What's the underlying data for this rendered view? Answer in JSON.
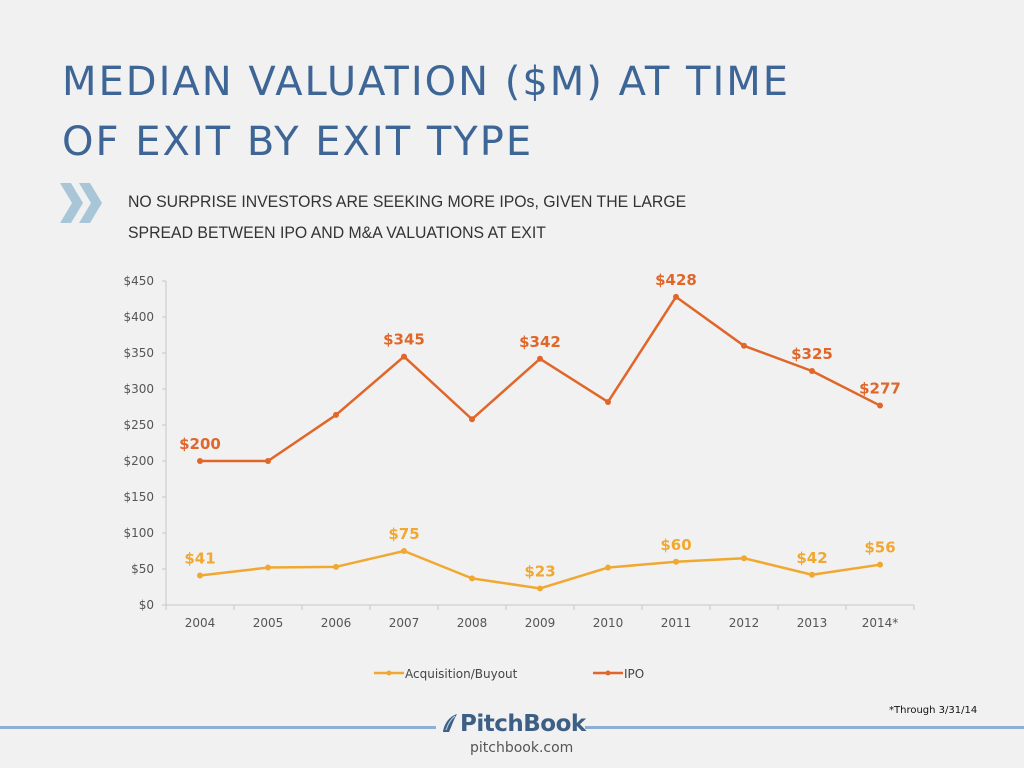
{
  "header": {
    "title_line1": "MEDIAN VALUATION ($M) AT TIME",
    "title_line2": "OF EXIT BY EXIT TYPE",
    "subtitle_line1": "NO SURPRISE INVESTORS ARE SEEKING MORE IPOs, GIVEN THE LARGE",
    "subtitle_line2": "SPREAD BETWEEN IPO AND M&A VALUATIONS AT EXIT",
    "bullet_icon": "double-chevron-right-icon"
  },
  "chart_data": {
    "type": "line",
    "title": "Median Valuation ($M) at Time of Exit by Exit Type",
    "xlabel": "",
    "ylabel": "",
    "categories": [
      "2004",
      "2005",
      "2006",
      "2007",
      "2008",
      "2009",
      "2010",
      "2011",
      "2012",
      "2013",
      "2014*"
    ],
    "ylim": [
      0,
      450
    ],
    "yticks": [
      0,
      50,
      100,
      150,
      200,
      250,
      300,
      350,
      400,
      450
    ],
    "ytick_labels": [
      "$0",
      "$50",
      "$100",
      "$150",
      "$200",
      "$250",
      "$300",
      "$350",
      "$400",
      "$450"
    ],
    "grid": false,
    "legend_position": "bottom",
    "series": [
      {
        "name": "Acquisition/Buyout",
        "color": "#f0a830",
        "values": [
          41,
          52,
          53,
          75,
          37,
          23,
          52,
          60,
          65,
          42,
          56
        ],
        "data_labels": [
          "$41",
          null,
          null,
          "$75",
          null,
          "$23",
          null,
          "$60",
          null,
          "$42",
          "$56"
        ]
      },
      {
        "name": "IPO",
        "color": "#e0662a",
        "values": [
          200,
          200,
          264,
          345,
          258,
          342,
          282,
          428,
          360,
          325,
          277
        ],
        "data_labels": [
          "$200",
          null,
          null,
          "$345",
          null,
          "$342",
          null,
          "$428",
          null,
          "$325",
          "$277"
        ]
      }
    ]
  },
  "footer": {
    "footnote": "*Through 3/31/14",
    "brand": "PitchBook",
    "website": "pitchbook.com",
    "accent_color": "#8eaed4"
  }
}
